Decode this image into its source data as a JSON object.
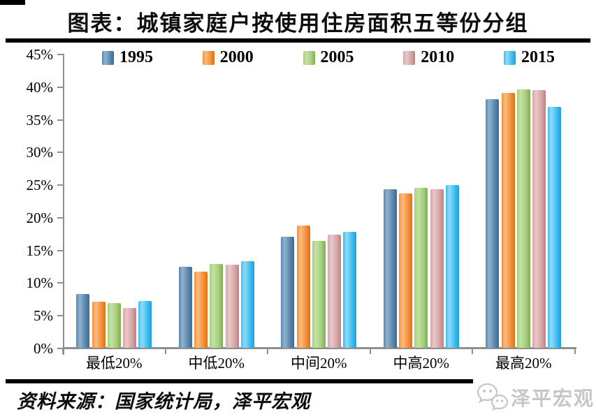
{
  "title": "图表：城镇家庭户按使用住房面积五等份分组",
  "source_note": "资料来源：国家统计局，泽平宏观",
  "watermark": {
    "label": "泽平宏观",
    "icon": "wechat-chat-bubbles-icon",
    "color": "#c6c6c6"
  },
  "colors": {
    "axis": "#8f8f8f",
    "rule": "#000000",
    "background": "#ffffff",
    "text": "#0d0d0d"
  },
  "chart_data": {
    "type": "bar",
    "title": "城镇家庭户按使用住房面积五等份分组",
    "categories": [
      "最低20%",
      "中低20%",
      "中间20%",
      "中高20%",
      "最高20%"
    ],
    "series": [
      {
        "name": "1995",
        "color": "#5d89ae",
        "color_light": "#8fb3d0",
        "color_dark": "#3d6b93",
        "values": [
          8.2,
          12.4,
          17.0,
          24.3,
          38.0
        ]
      },
      {
        "name": "2000",
        "color": "#f5913c",
        "color_light": "#f9bc80",
        "color_dark": "#dd7013",
        "values": [
          7.1,
          11.6,
          18.7,
          23.6,
          39.0
        ]
      },
      {
        "name": "2005",
        "color": "#a5cf7d",
        "color_light": "#c6e1a6",
        "color_dark": "#81ad52",
        "values": [
          6.8,
          12.8,
          16.4,
          24.5,
          39.5
        ]
      },
      {
        "name": "2010",
        "color": "#d8a6a6",
        "color_light": "#e8c9c9",
        "color_dark": "#bd8082",
        "values": [
          6.1,
          12.7,
          17.3,
          24.3,
          39.4
        ]
      },
      {
        "name": "2015",
        "color": "#42bdee",
        "color_light": "#8edcf8",
        "color_dark": "#18a2dd",
        "values": [
          7.2,
          13.3,
          17.7,
          24.9,
          36.9
        ]
      }
    ],
    "xlabel": "",
    "ylabel": "",
    "ylim": [
      0,
      45
    ],
    "ytick_step": 5,
    "ytick_suffix": "%",
    "grid": false,
    "legend_position": "top"
  }
}
